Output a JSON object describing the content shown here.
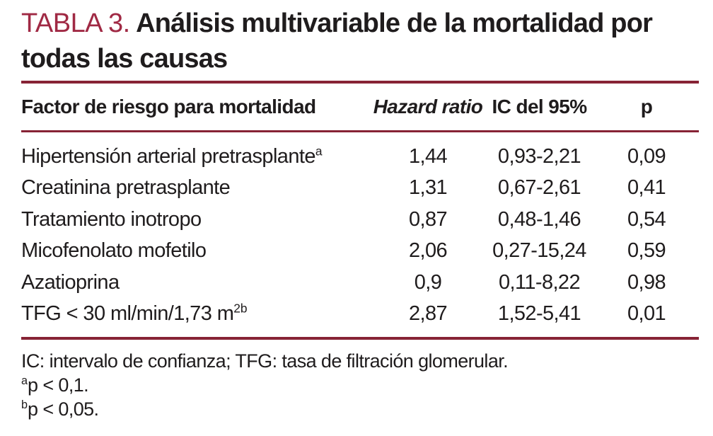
{
  "colors": {
    "accent": "#a02944",
    "rule": "#872335",
    "ink": "#1f1c1d"
  },
  "title": {
    "tag": "TABLA 3.",
    "text": "Análisis multivariable de la mortalidad por todas las causas"
  },
  "table": {
    "headers": {
      "factor": "Factor de riesgo para mortalidad",
      "hazard_ratio": "Hazard ratio",
      "ic": "IC del 95%",
      "p": "p"
    },
    "rows": [
      {
        "factor": "Hipertensión arterial pretrasplante",
        "sup": "a",
        "hr": "1,44",
        "ic": "0,93-2,21",
        "p": "0,09"
      },
      {
        "factor": "Creatinina pretrasplante",
        "sup": "",
        "hr": "1,31",
        "ic": "0,67-2,61",
        "p": "0,41"
      },
      {
        "factor": "Tratamiento inotropo",
        "sup": "",
        "hr": "0,87",
        "ic": "0,48-1,46",
        "p": "0,54"
      },
      {
        "factor": "Micofenolato mofetilo",
        "sup": "",
        "hr": "2,06",
        "ic": "0,27-15,24",
        "p": "0,59"
      },
      {
        "factor": "Azatioprina",
        "sup": "",
        "hr": "0,9",
        "ic": "0,11-8,22",
        "p": "0,98"
      },
      {
        "factor": "TFG < 30 ml/min/1,73 m",
        "sup": "2b",
        "hr": "2,87",
        "ic": "1,52-5,41",
        "p": "0,01"
      }
    ]
  },
  "footnotes": {
    "abbrev": "IC: intervalo de confianza; TFG: tasa de filtración glomerular.",
    "notes": [
      {
        "sup": "a",
        "text": "p < 0,1."
      },
      {
        "sup": "b",
        "text": "p < 0,05."
      }
    ]
  }
}
